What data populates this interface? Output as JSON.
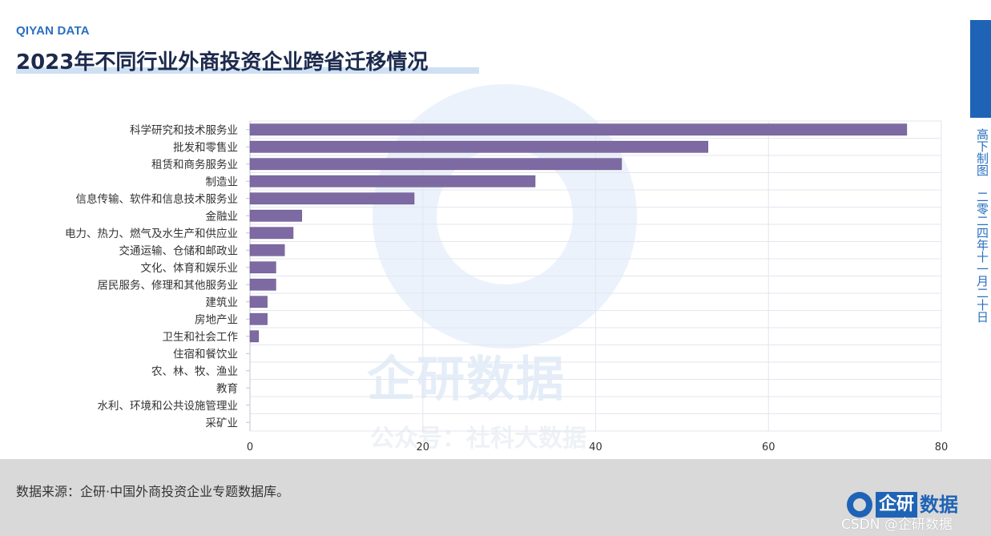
{
  "brand": "QIYAN DATA",
  "title": "2023年不同行业外商投资企业跨省迁移情况",
  "side_date": "高下制图 二零二四年十一月二十日",
  "watermark": {
    "main": "企研数据",
    "sub": "公众号：社科大数据"
  },
  "source": "数据来源：企研·中国外商投资企业专题数据库。",
  "logo": {
    "box_text": "企研",
    "text": "数据"
  },
  "csdn_watermark": "CSDN @企研数据",
  "colors": {
    "bar": "#7e6aa3",
    "bar_edge": "#6a5a8e",
    "grid": "#e3e6ef",
    "accent": "#1f63b6"
  },
  "chart_data": {
    "type": "bar",
    "orientation": "horizontal",
    "title": "2023年不同行业外商投资企业跨省迁移情况",
    "xlabel": "",
    "ylabel": "",
    "xlim": [
      0,
      80
    ],
    "xticks": [
      0,
      20,
      40,
      60,
      80
    ],
    "grid": true,
    "categories": [
      "科学研究和技术服务业",
      "批发和零售业",
      "租赁和商务服务业",
      "制造业",
      "信息传输、软件和信息技术服务业",
      "金融业",
      "电力、热力、燃气及水生产和供应业",
      "交通运输、仓储和邮政业",
      "文化、体育和娱乐业",
      "居民服务、修理和其他服务业",
      "建筑业",
      "房地产业",
      "卫生和社会工作",
      "住宿和餐饮业",
      "农、林、牧、渔业",
      "教育",
      "水利、环境和公共设施管理业",
      "采矿业"
    ],
    "values": [
      76,
      53,
      43,
      33,
      19,
      6,
      5,
      4,
      3,
      3,
      2,
      2,
      1,
      0,
      0,
      0,
      0,
      0
    ]
  }
}
